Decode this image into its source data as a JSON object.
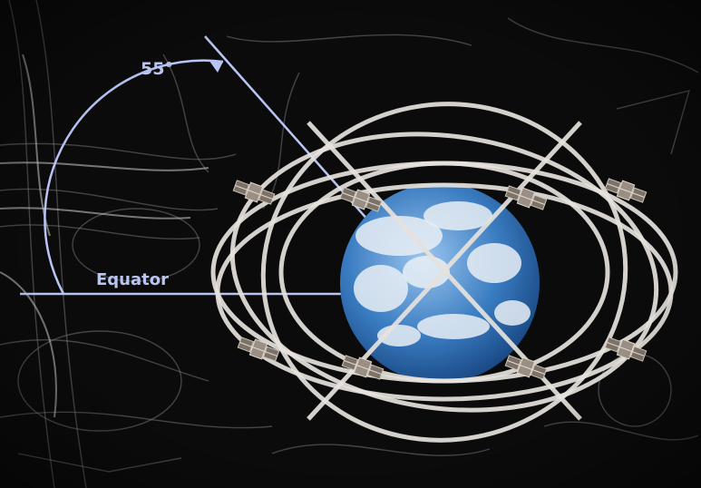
{
  "figure": {
    "angle_label": "55°",
    "equator_label": "Equator",
    "inclination_deg": 55,
    "satellite_count": 8,
    "colors": {
      "background": "#0b0b0b",
      "sketch_lines": "#8a8a8a",
      "orbit_ring": "#e6e2dc",
      "annotation": "#b8c4f2",
      "earth_ocean": "#2f6fb5",
      "earth_cloud": "#e9eef4",
      "satellite_body": "#9a8f84"
    }
  }
}
